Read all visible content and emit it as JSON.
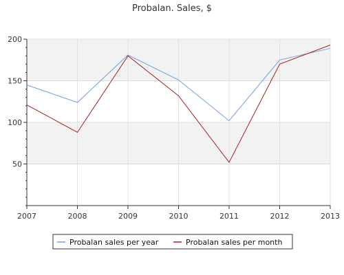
{
  "chart_data": {
    "type": "line",
    "title": "Probalan. Sales, $",
    "categories": [
      "2007",
      "2008",
      "2009",
      "2010",
      "2011",
      "2012",
      "2013"
    ],
    "x": [
      2007,
      2008,
      2009,
      2010,
      2011,
      2012,
      2013
    ],
    "ylim": [
      0,
      200
    ],
    "yticks": [
      50,
      100,
      150,
      200
    ],
    "grid": true,
    "legend_position": "bottom",
    "series": [
      {
        "name": "Probalan sales per year",
        "color": "#6f9fe0",
        "values": [
          145,
          124,
          181,
          151,
          102,
          175,
          189
        ]
      },
      {
        "name": "Probalan sales per month",
        "color": "#a5201c",
        "values": [
          121,
          88,
          180,
          132,
          52,
          170,
          193
        ]
      }
    ]
  }
}
